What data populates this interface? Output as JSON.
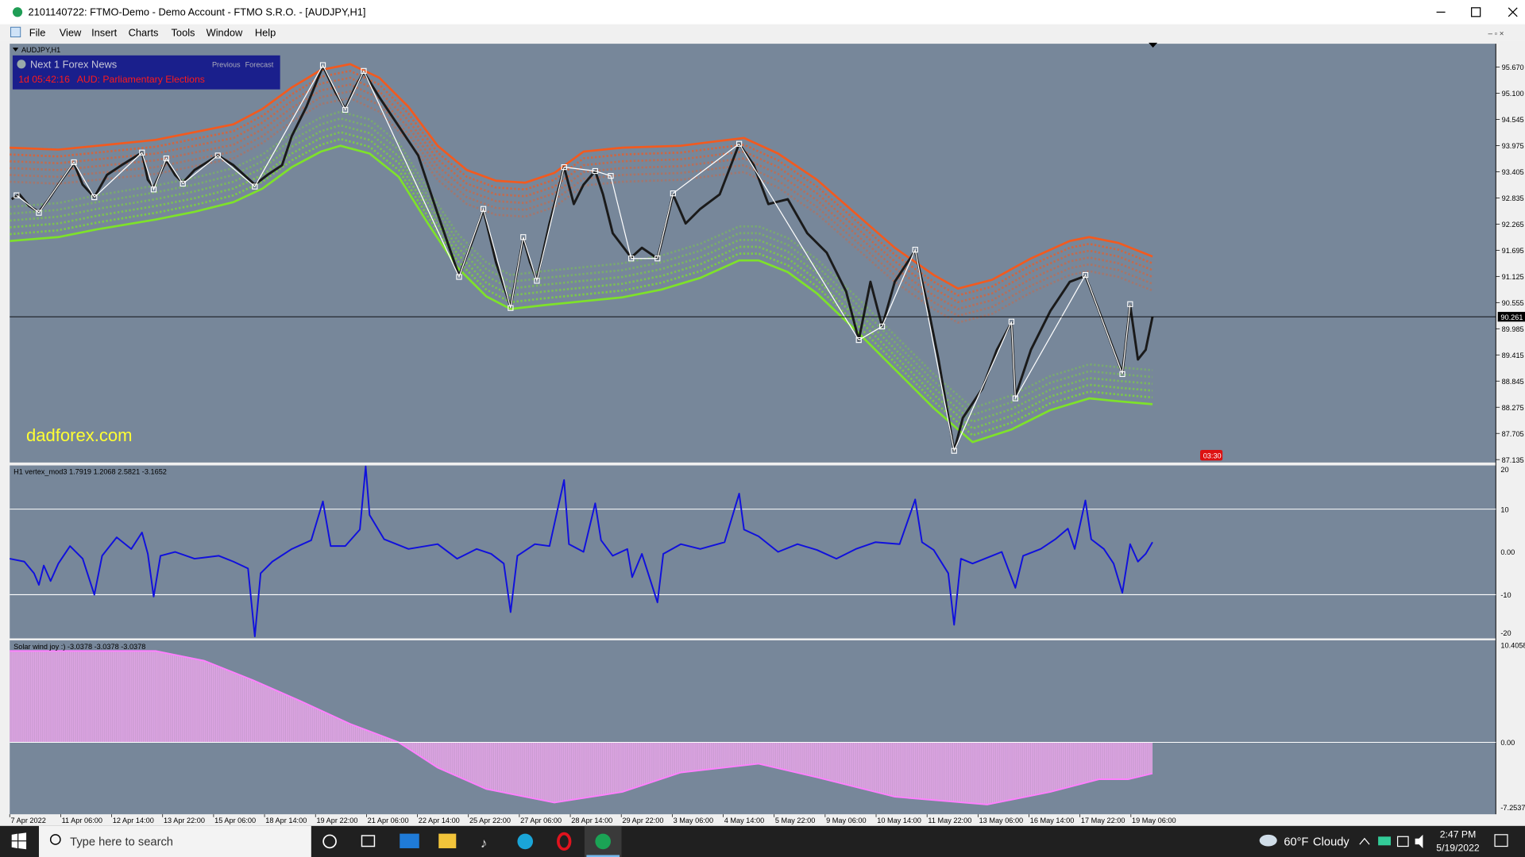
{
  "window": {
    "title": "2101140722: FTMO-Demo - Demo Account - FTMO S.R.O. - [AUDJPY,H1]"
  },
  "menu": [
    "File",
    "View",
    "Insert",
    "Charts",
    "Tools",
    "Window",
    "Help"
  ],
  "chart": {
    "symbol": "AUDJPY,H1",
    "news_panel": {
      "title": "Next 1 Forex News",
      "columns": [
        "Previous",
        "Forecast"
      ],
      "countdown": "1d 05:42:16",
      "event": "AUD: Parliamentary Elections"
    },
    "watermark": "dadforex.com",
    "price_ticks": [
      "95.670",
      "95.100",
      "94.545",
      "93.975",
      "93.405",
      "92.835",
      "92.265",
      "91.695",
      "91.125",
      "90.555",
      "89.985",
      "89.415",
      "88.845",
      "88.275",
      "87.705",
      "87.135"
    ],
    "current_price": "90.261",
    "timer": "03:30",
    "dates": [
      "7 Apr 2022",
      "11 Apr 06:00",
      "12 Apr 14:00",
      "13 Apr 22:00",
      "15 Apr 06:00",
      "18 Apr 14:00",
      "19 Apr 22:00",
      "21 Apr 06:00",
      "22 Apr 14:00",
      "25 Apr 22:00",
      "27 Apr 06:00",
      "28 Apr 14:00",
      "29 Apr 22:00",
      "3 May 06:00",
      "4 May 14:00",
      "5 May 22:00",
      "9 May 06:00",
      "10 May 14:00",
      "11 May 22:00",
      "13 May 06:00",
      "16 May 14:00",
      "17 May 22:00",
      "19 May 06:00"
    ]
  },
  "indicators": [
    {
      "label": "H1 vertex_mod3 1.7919 1.2068 2.5821 -3.1652",
      "ticks": [
        "20",
        "10",
        "0.00",
        "-10",
        "-20"
      ]
    },
    {
      "label": "Solar wind joy :) -3.0378 -3.0378 -3.0378",
      "ticks": [
        "10.4058",
        "0.00",
        "-7.2537"
      ]
    }
  ],
  "taskbar": {
    "search": "Type here to search",
    "temperature": "60°F",
    "weather": "Cloudy",
    "time": "2:47 PM",
    "date": "5/19/2022"
  }
}
